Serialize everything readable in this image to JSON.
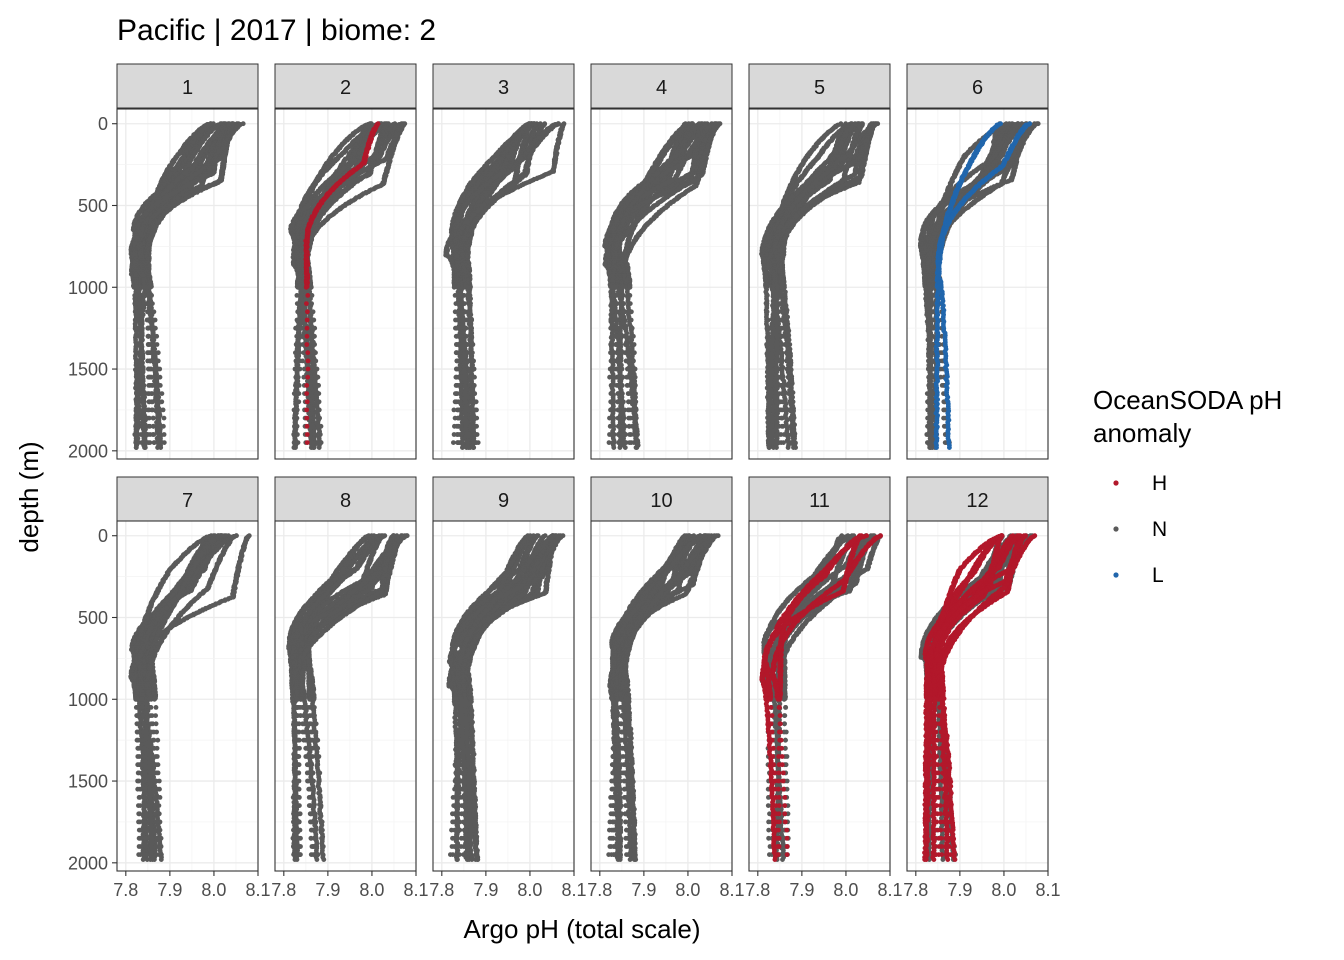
{
  "chart_data": {
    "type": "scatter",
    "title": "Pacific | 2017 | biome: 2",
    "xlabel": "Argo pH (total scale)",
    "ylabel": "depth (m)",
    "xlim": [
      7.78,
      8.1
    ],
    "ylim": [
      2050,
      -90
    ],
    "y_reversed": true,
    "x_ticks": [
      7.8,
      7.9,
      8.0,
      8.1
    ],
    "x_tick_labels": [
      "7.8",
      "7.9",
      "8.0",
      "8.1"
    ],
    "y_ticks": [
      0,
      500,
      1000,
      1500,
      2000
    ],
    "y_tick_labels": [
      "0",
      "500",
      "1000",
      "1500",
      "2000"
    ],
    "grid": true,
    "facets": [
      "1",
      "2",
      "3",
      "4",
      "5",
      "6",
      "7",
      "8",
      "9",
      "10",
      "11",
      "12"
    ],
    "legend": {
      "title": "OceanSODA pH\nanomaly",
      "position": "right",
      "items": [
        {
          "label": "H",
          "color": "#b2182b"
        },
        {
          "label": "N",
          "color": "#5a5a5a"
        },
        {
          "label": "L",
          "color": "#2166ac"
        }
      ]
    },
    "profile_model": {
      "surface_ph_range": [
        7.99,
        8.08
      ],
      "knee_depth_range": [
        180,
        380
      ],
      "min_ph_range": [
        7.81,
        7.86
      ],
      "min_depth_range": [
        650,
        950
      ],
      "deep_ph_range": [
        7.82,
        7.89
      ],
      "deep_max_depth": 1980
    },
    "panel_profiles": [
      {
        "month": "1",
        "n": 16,
        "anomaly": [
          {
            "class": "N",
            "share": 1.0
          }
        ]
      },
      {
        "month": "2",
        "n": 16,
        "anomaly": [
          {
            "class": "N",
            "share": 0.92
          },
          {
            "class": "H",
            "share": 0.08
          }
        ]
      },
      {
        "month": "3",
        "n": 16,
        "anomaly": [
          {
            "class": "N",
            "share": 1.0
          }
        ]
      },
      {
        "month": "4",
        "n": 16,
        "anomaly": [
          {
            "class": "N",
            "share": 1.0
          }
        ]
      },
      {
        "month": "5",
        "n": 16,
        "anomaly": [
          {
            "class": "N",
            "share": 1.0
          }
        ]
      },
      {
        "month": "6",
        "n": 16,
        "anomaly": [
          {
            "class": "N",
            "share": 0.85
          },
          {
            "class": "L",
            "share": 0.15
          }
        ]
      },
      {
        "month": "7",
        "n": 16,
        "anomaly": [
          {
            "class": "N",
            "share": 1.0
          }
        ]
      },
      {
        "month": "8",
        "n": 16,
        "anomaly": [
          {
            "class": "N",
            "share": 1.0
          }
        ]
      },
      {
        "month": "9",
        "n": 16,
        "anomaly": [
          {
            "class": "N",
            "share": 1.0
          }
        ]
      },
      {
        "month": "10",
        "n": 16,
        "anomaly": [
          {
            "class": "N",
            "share": 1.0
          }
        ]
      },
      {
        "month": "11",
        "n": 14,
        "anomaly": [
          {
            "class": "N",
            "share": 0.7
          },
          {
            "class": "H",
            "share": 0.3
          }
        ]
      },
      {
        "month": "12",
        "n": 18,
        "anomaly": [
          {
            "class": "H",
            "share": 0.6
          },
          {
            "class": "N",
            "share": 0.4
          }
        ]
      }
    ]
  }
}
